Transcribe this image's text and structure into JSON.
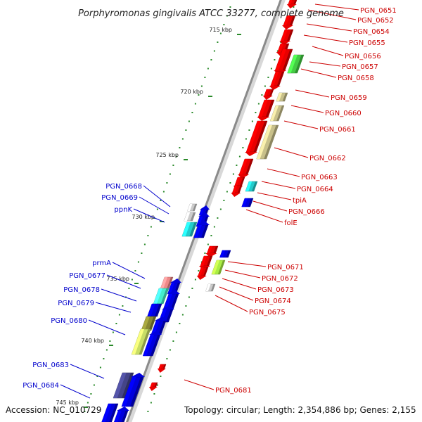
{
  "title": "Porphyromonas gingivalis ATCC 33277, complete genome",
  "footer": {
    "accession": "Accession: NC_010729",
    "topology": "Topology: circular; Length: 2,354,886 bp; Genes: 2,155"
  },
  "colors": {
    "forward_gene": "#e80000",
    "reverse_gene": "#0000e0",
    "backbone": "#8a8a8a",
    "tick": "#2a8a2a",
    "label_red": "#cc0000",
    "label_blue": "#0000cc"
  },
  "kbp_ticks": [
    "715 kbp",
    "720 kbp",
    "725 kbp",
    "730 kbp",
    "735 kbp",
    "740 kbp",
    "745 kbp"
  ],
  "forward_genes": [
    "PGN_0651",
    "PGN_0652",
    "PGN_0654",
    "PGN_0655",
    "PGN_0656",
    "PGN_0657",
    "PGN_0658",
    "PGN_0659",
    "PGN_0660",
    "PGN_0661",
    "PGN_0662",
    "PGN_0663",
    "PGN_0664",
    "tpiA",
    "PGN_0666",
    "folE",
    "PGN_0671",
    "PGN_0672",
    "PGN_0673",
    "PGN_0674",
    "PGN_0675",
    "PGN_0681"
  ],
  "reverse_genes": [
    "PGN_0668",
    "PGN_0669",
    "ppnK",
    "prmA",
    "PGN_0677",
    "PGN_0678",
    "PGN_0679",
    "PGN_0680",
    "PGN_0683",
    "PGN_0684"
  ]
}
